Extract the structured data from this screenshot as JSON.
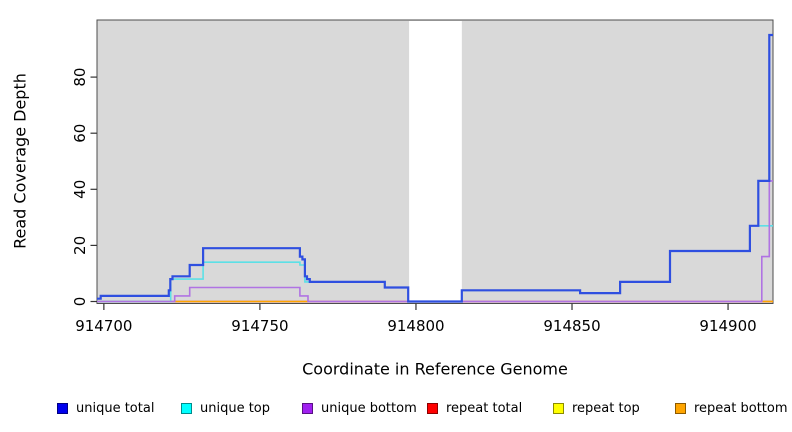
{
  "chart_data": {
    "type": "line",
    "subtype": "step-coverage",
    "title": "",
    "xlabel": "Coordinate in Reference Genome",
    "ylabel": "Read Coverage Depth",
    "xlim": [
      914697.8,
      914914.4
    ],
    "ylim": [
      0,
      100
    ],
    "xticks": [
      914700,
      914750,
      914800,
      914850,
      914900
    ],
    "yticks": [
      0,
      20,
      40,
      60,
      80
    ],
    "grid": false,
    "panel_color": "#d9d9d9",
    "background_color": "#ffffff",
    "masked_region": {
      "x0": 914797.8,
      "x1": 914814.7,
      "color": "#ffffff"
    },
    "legend_position": "bottom",
    "legend": [
      {
        "label": "unique total",
        "color": "#0000ee"
      },
      {
        "label": "unique top",
        "color": "#00ffff"
      },
      {
        "label": "unique bottom",
        "color": "#a020f0"
      },
      {
        "label": "repeat total",
        "color": "#ff0000"
      },
      {
        "label": "repeat top",
        "color": "#ffff00"
      },
      {
        "label": "repeat bottom",
        "color": "#ffa500"
      }
    ],
    "series": [
      {
        "name": "repeat total",
        "line_color": "#dd5072",
        "width": 1.6,
        "flat_value": 0,
        "segments": [
          [
            914697.8,
            914914.4
          ]
        ]
      },
      {
        "name": "repeat top",
        "line_color": "#a8d9a2",
        "width": 1.6,
        "flat_value": 0,
        "segments": [
          [
            914697.8,
            914722.7
          ]
        ]
      },
      {
        "name": "repeat bottom",
        "line_color": "#ffa500",
        "width": 1.6,
        "flat_value": 0,
        "segments": [
          [
            914722.7,
            914765.4
          ],
          [
            914910.8,
            914914.4
          ]
        ]
      },
      {
        "name": "unique top",
        "line_color": "#5ce0e6",
        "width": 1.6,
        "points": [
          [
            914697.8,
            0
          ],
          [
            914721.4,
            8
          ],
          [
            914731.8,
            14
          ],
          [
            914762.8,
            13
          ],
          [
            914764.4,
            7
          ],
          [
            914766,
            7
          ],
          [
            914790,
            5
          ],
          [
            914797.5,
            0
          ],
          [
            914814.7,
            4
          ],
          [
            914852.6,
            3
          ],
          [
            914865.4,
            7
          ],
          [
            914881.4,
            18
          ],
          [
            914907,
            27
          ],
          [
            914914.4,
            27
          ]
        ]
      },
      {
        "name": "unique bottom",
        "line_color": "#b073e3",
        "width": 1.6,
        "points": [
          [
            914697.8,
            0
          ],
          [
            914722.7,
            2
          ],
          [
            914727.5,
            5
          ],
          [
            914762.8,
            2
          ],
          [
            914765.4,
            0
          ],
          [
            914910.8,
            16
          ],
          [
            914913.2,
            43
          ],
          [
            914914.4,
            43
          ]
        ]
      },
      {
        "name": "unique total",
        "line_color": "#2f4fe0",
        "width": 2.2,
        "points": [
          [
            914697.8,
            1
          ],
          [
            914699,
            2
          ],
          [
            914720.8,
            4
          ],
          [
            914721.3,
            8
          ],
          [
            914722,
            9
          ],
          [
            914727.5,
            13
          ],
          [
            914731.8,
            19
          ],
          [
            914762.8,
            16
          ],
          [
            914763.6,
            15
          ],
          [
            914764.4,
            9
          ],
          [
            914765.1,
            8
          ],
          [
            914766,
            7
          ],
          [
            914790,
            5
          ],
          [
            914797.5,
            0
          ],
          [
            914814.7,
            4
          ],
          [
            914852.6,
            3
          ],
          [
            914865.4,
            7
          ],
          [
            914881.4,
            18
          ],
          [
            914907,
            27
          ],
          [
            914909.7,
            43
          ],
          [
            914913.2,
            95
          ],
          [
            914914.4,
            95
          ]
        ]
      }
    ]
  }
}
